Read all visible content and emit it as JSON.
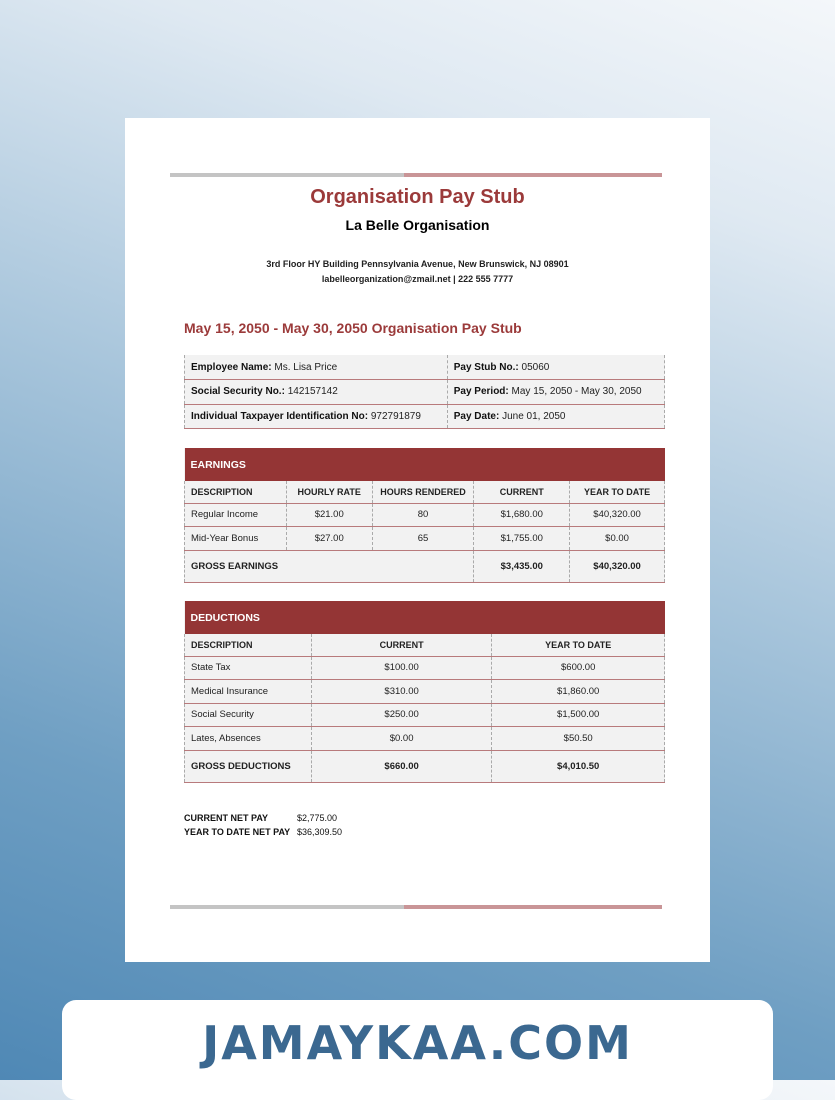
{
  "doc": {
    "title": "Organisation Pay Stub",
    "company": "La Belle Organisation",
    "address": "3rd Floor HY Building Pennsylvania Avenue, New Brunswick, NJ 08901",
    "contact": "labelleorganization@zmail.net | 222 555 7777",
    "period_heading": "May 15, 2050 - May 30, 2050 Organisation Pay Stub"
  },
  "info": [
    {
      "l_label": "Employee Name:",
      "l_value": "Ms. Lisa Price",
      "r_label": "Pay Stub No.:",
      "r_value": "05060"
    },
    {
      "l_label": "Social Security No.:",
      "l_value": "142157142",
      "r_label": "Pay Period:",
      "r_value": "May 15, 2050 - May 30, 2050"
    },
    {
      "l_label": "Individual Taxpayer Identification No:",
      "l_value": "972791879",
      "r_label": "Pay Date:",
      "r_value": "June 01, 2050"
    }
  ],
  "earnings": {
    "title": "EARNINGS",
    "columns": [
      "DESCRIPTION",
      "HOURLY RATE",
      "HOURS RENDERED",
      "CURRENT",
      "YEAR TO DATE"
    ],
    "rows": [
      [
        "Regular Income",
        "$21.00",
        "80",
        "$1,680.00",
        "$40,320.00"
      ],
      [
        "Mid-Year Bonus",
        "$27.00",
        "65",
        "$1,755.00",
        "$0.00"
      ]
    ],
    "total": {
      "label": "GROSS EARNINGS",
      "current": "$3,435.00",
      "ytd": "$40,320.00"
    }
  },
  "deductions": {
    "title": "DEDUCTIONS",
    "columns": [
      "DESCRIPTION",
      "CURRENT",
      "YEAR TO DATE"
    ],
    "rows": [
      [
        "State Tax",
        "$100.00",
        "$600.00"
      ],
      [
        "Medical Insurance",
        "$310.00",
        "$1,860.00"
      ],
      [
        "Social Security",
        "$250.00",
        "$1,500.00"
      ],
      [
        "Lates, Absences",
        "$0.00",
        "$50.50"
      ]
    ],
    "total": {
      "label": "GROSS DEDUCTIONS",
      "current": "$660.00",
      "ytd": "$4,010.50"
    }
  },
  "net": {
    "current_label": "CURRENT NET PAY",
    "current": "$2,775.00",
    "ytd_label": "YEAR TO DATE NET PAY",
    "ytd": "$36,309.50"
  },
  "watermark": "JAMAYKAA.COM",
  "colors": {
    "accent": "#943535",
    "heading": "#9b3a3a"
  }
}
